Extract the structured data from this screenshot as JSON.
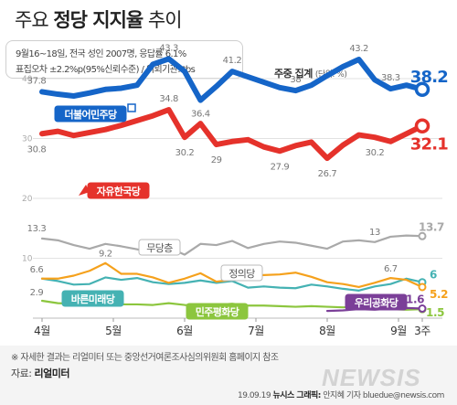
{
  "header": {
    "title_prefix": "주요 ",
    "title_bold": "정당 지지율",
    "title_suffix": " 추이"
  },
  "info": {
    "line1": "9월16~18일, 전국 성인 2007명, 응답률 6.1%",
    "line2": "표집오차 ±2.2%p(95%신뢰수준) / 의뢰기관: tbs"
  },
  "aggregate": {
    "label": "주중 집계",
    "unit": "(단위: %)"
  },
  "footer": {
    "note": "※ 자세한 결과는 리얼미터 또는 중앙선거여론조사심의위원회 홈페이지 참조",
    "source_label": "자료: ",
    "source_value": "리얼미터",
    "date": "19.09.19",
    "agency": "뉴시스 그래픽:",
    "reporter": "안지혜 기자 bluedue@newsis.com"
  },
  "watermark": "NEWSIS",
  "chart_data": {
    "type": "line",
    "y_ticks": [
      40,
      30,
      20,
      10
    ],
    "ylim": [
      0,
      46
    ],
    "x_month_labels": [
      "4월",
      "5월",
      "6월",
      "7월",
      "8월",
      "9월",
      "3주"
    ],
    "x_month_positions": [
      0,
      4.5,
      9,
      13.5,
      18,
      22.5,
      24
    ],
    "n_points": 25,
    "series": [
      {
        "name": "더불어민주당",
        "color": "#1565c8",
        "style": "thick",
        "values": [
          37.8,
          37.4,
          37.1,
          37.6,
          38.2,
          38.4,
          38.9,
          42.4,
          43.3,
          41.2,
          36.4,
          38.7,
          41.2,
          40.3,
          39.4,
          38.5,
          38.0,
          38.9,
          40.5,
          42.0,
          43.2,
          39.8,
          38.3,
          38.9,
          38.2
        ],
        "labels": [
          {
            "i": 0,
            "text": "37.8"
          },
          {
            "i": 8,
            "text": "43.3"
          },
          {
            "i": 10,
            "text": "36.4"
          },
          {
            "i": 12,
            "text": "41.2"
          },
          {
            "i": 16,
            "text": "38"
          },
          {
            "i": 20,
            "text": "43.2"
          },
          {
            "i": 22,
            "text": "38.3"
          },
          {
            "i": 24,
            "text": "38.2"
          }
        ]
      },
      {
        "name": "자유한국당",
        "color": "#e5322b",
        "style": "thick",
        "values": [
          30.8,
          31.2,
          30.5,
          31.0,
          31.5,
          32.2,
          33.0,
          33.8,
          34.8,
          30.2,
          32.5,
          29.0,
          29.5,
          29.8,
          28.6,
          27.9,
          28.8,
          29.4,
          26.7,
          28.9,
          30.6,
          30.2,
          29.5,
          30.8,
          32.1
        ],
        "labels": [
          {
            "i": 0,
            "text": "30.8"
          },
          {
            "i": 8,
            "text": "34.8"
          },
          {
            "i": 9,
            "text": "30.2"
          },
          {
            "i": 11,
            "text": "29"
          },
          {
            "i": 15,
            "text": "27.9"
          },
          {
            "i": 18,
            "text": "26.7"
          },
          {
            "i": 21,
            "text": "30.2"
          },
          {
            "i": 24,
            "text": "32.1"
          }
        ]
      },
      {
        "name": "무당층",
        "color": "#a9a9a9",
        "style": "thin",
        "values": [
          13.3,
          13.0,
          12.2,
          11.6,
          12.4,
          12.0,
          11.5,
          10.9,
          11.8,
          10.6,
          12.4,
          12.2,
          12.9,
          11.7,
          12.4,
          12.8,
          12.6,
          12.1,
          11.6,
          12.8,
          13.0,
          12.7,
          13.6,
          13.8,
          13.7
        ],
        "labels": [
          {
            "i": 0,
            "text": "13.3"
          },
          {
            "i": 21,
            "text": "13"
          },
          {
            "i": 24,
            "text": "13.7"
          }
        ]
      },
      {
        "name": "정의당",
        "color": "#f5a11c",
        "style": "thin",
        "values": [
          6.6,
          6.6,
          7.1,
          7.9,
          9.2,
          7.4,
          7.4,
          6.8,
          5.9,
          6.6,
          7.5,
          6.1,
          6.4,
          7.1,
          7.2,
          7.3,
          7.6,
          6.9,
          6.0,
          5.7,
          5.2,
          5.9,
          6.7,
          6.4,
          5.2
        ],
        "labels": [
          {
            "i": 0,
            "text": "6.6"
          },
          {
            "i": 4,
            "text": "9.2"
          },
          {
            "i": 22,
            "text": "6.7"
          },
          {
            "i": 24,
            "text": "5.2"
          }
        ]
      },
      {
        "name": "바른미래당",
        "color": "#45b2b3",
        "style": "thin",
        "values": [
          6.6,
          6.2,
          5.6,
          5.7,
          6.8,
          6.4,
          6.7,
          6.0,
          5.7,
          5.9,
          6.3,
          5.9,
          6.2,
          5.1,
          5.3,
          5.1,
          5.0,
          5.6,
          5.3,
          4.9,
          4.6,
          5.3,
          5.7,
          6.6,
          6.0
        ],
        "labels": [
          {
            "i": 24,
            "text": "6"
          }
        ]
      },
      {
        "name": "민주평화당",
        "color": "#8cc63e",
        "style": "thin",
        "values": [
          2.9,
          2.5,
          2.4,
          2.3,
          2.6,
          2.3,
          2.3,
          2.2,
          2.5,
          2.2,
          2.1,
          2.2,
          2.4,
          2.1,
          2.1,
          2.0,
          1.9,
          2.0,
          1.9,
          1.8,
          1.9,
          1.8,
          1.5,
          1.4,
          1.5
        ],
        "labels": [
          {
            "i": 0,
            "text": "2.9"
          },
          {
            "i": 24,
            "text": "1.5"
          }
        ]
      },
      {
        "name": "우리공화당",
        "color": "#7b3f98",
        "style": "thin",
        "start": 18,
        "values": [
          null,
          null,
          null,
          null,
          null,
          null,
          null,
          null,
          null,
          null,
          null,
          null,
          null,
          null,
          null,
          null,
          null,
          null,
          1.2,
          1.3,
          1.5,
          1.4,
          1.6,
          1.7,
          1.6
        ],
        "labels": [
          {
            "i": 24,
            "text": "1.6"
          }
        ]
      }
    ],
    "series_tags": [
      {
        "series": "더불어민주당",
        "text": "더불어민주당",
        "style": "box",
        "bg": "#1565c8",
        "fg": "#ffffff"
      },
      {
        "series": "자유한국당",
        "text": "자유한국당",
        "style": "box",
        "bg": "#e5322b",
        "fg": "#ffffff"
      },
      {
        "series": "무당층",
        "text": "무당층",
        "style": "outline",
        "bg": "#ffffff",
        "fg": "#555555"
      },
      {
        "series": "정의당",
        "text": "정의당",
        "style": "outline",
        "bg": "#ffffff",
        "fg": "#555555"
      },
      {
        "series": "바른미래당",
        "text": "바른미래당",
        "style": "box",
        "bg": "#45b2b3",
        "fg": "#ffffff"
      },
      {
        "series": "민주평화당",
        "text": "민주평화당",
        "style": "box",
        "bg": "#8cc63e",
        "fg": "#ffffff"
      },
      {
        "series": "우리공화당",
        "text": "우리공화당",
        "style": "box",
        "bg": "#7b3f98",
        "fg": "#ffffff"
      }
    ]
  }
}
